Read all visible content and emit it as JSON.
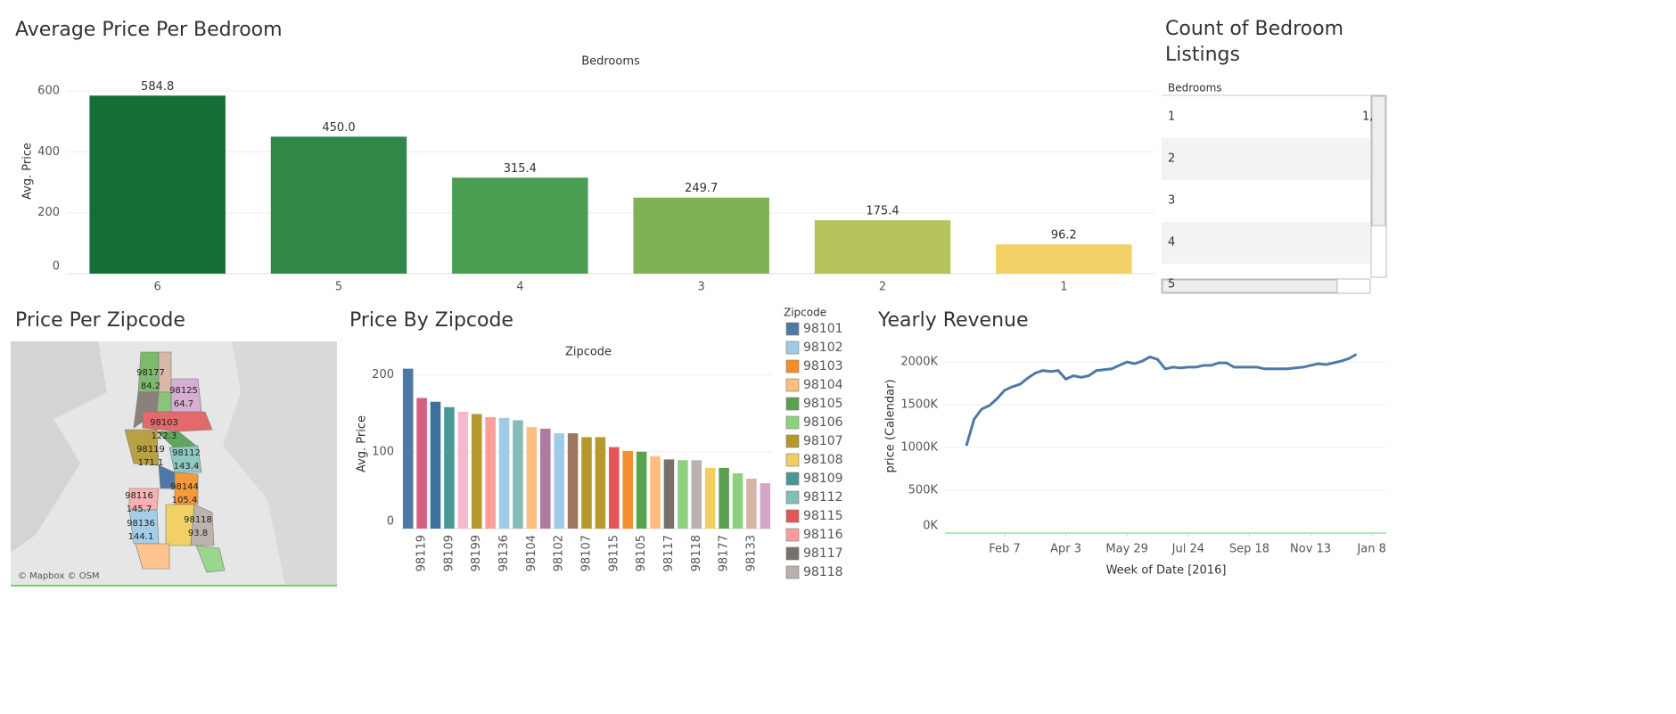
{
  "chart_data": [
    {
      "type": "bar",
      "title": "Average Price Per Bedroom",
      "x_label": "Bedrooms",
      "y_label": "Avg. Price",
      "categories": [
        "6",
        "5",
        "4",
        "3",
        "2",
        "1"
      ],
      "values": [
        584.8,
        450.0,
        315.4,
        249.7,
        175.4,
        96.2
      ],
      "value_labels": [
        "584.8",
        "450.0",
        "315.4",
        "249.7",
        "175.4",
        "96.2"
      ],
      "colors": [
        "#156e35",
        "#2f8748",
        "#4a9e51",
        "#7db255",
        "#b6c35c",
        "#f1d166"
      ],
      "ylim": [
        0,
        650
      ],
      "yticks": [
        0,
        200,
        400,
        600
      ],
      "grid": true
    },
    {
      "type": "bar",
      "title": "Price By Zipcode",
      "x_label": "Zipcode",
      "y_label": "Avg. Price",
      "categories": [
        null,
        "98119",
        null,
        "98109",
        null,
        "98199",
        null,
        "98136",
        null,
        "98104",
        null,
        "98102",
        null,
        "98107",
        null,
        "98115",
        null,
        "98105",
        null,
        "98117",
        null,
        "98118",
        null,
        "98177",
        null,
        "98133",
        null
      ],
      "values": [
        208,
        170,
        165,
        158,
        152,
        149,
        145,
        144,
        141,
        132,
        130,
        124,
        124,
        119,
        119,
        106,
        101,
        100,
        94,
        90,
        89,
        89,
        79,
        79,
        72,
        65,
        59
      ],
      "colors": [
        "#4e79a7",
        "#d75f80",
        "#3f6f9f",
        "#499894",
        "#f6b8cf",
        "#b6992d",
        "#ff9d9a",
        "#a0cbe8",
        "#86bcb6",
        "#ffbe7d",
        "#b07aa1",
        "#a0cbe8",
        "#9d7660",
        "#b6992d",
        "#b6992d",
        "#e15759",
        "#f28e2b",
        "#59a14f",
        "#ffbe7d",
        "#79706e",
        "#8cd17d",
        "#bab0ac",
        "#f1ce63",
        "#59a14f",
        "#8cd17d",
        "#d7b5a6",
        "#d4a6c8"
      ],
      "x_label_rotation": -90,
      "ylim": [
        0,
        218
      ],
      "yticks": [
        0,
        100,
        200
      ],
      "grid": true,
      "legend": {
        "title": "Zipcode",
        "items": [
          {
            "name": "98101",
            "color": "#4e79a7"
          },
          {
            "name": "98102",
            "color": "#a0cbe8"
          },
          {
            "name": "98103",
            "color": "#f28e2b"
          },
          {
            "name": "98104",
            "color": "#ffbe7d"
          },
          {
            "name": "98105",
            "color": "#59a14f"
          },
          {
            "name": "98106",
            "color": "#8cd17d"
          },
          {
            "name": "98107",
            "color": "#b6992d"
          },
          {
            "name": "98108",
            "color": "#f1ce63"
          },
          {
            "name": "98109",
            "color": "#499894"
          },
          {
            "name": "98112",
            "color": "#86bcb6"
          },
          {
            "name": "98115",
            "color": "#e15759"
          },
          {
            "name": "98116",
            "color": "#ff9d9a"
          },
          {
            "name": "98117",
            "color": "#79706e"
          },
          {
            "name": "98118",
            "color": "#bab0ac"
          }
        ]
      }
    },
    {
      "type": "line",
      "title": "Yearly Revenue",
      "x_label": "Week of Date [2016]",
      "y_label": "price (Calendar)",
      "color": "#4e79a7",
      "x": [
        0,
        1,
        2,
        3,
        4,
        5,
        6,
        7,
        8,
        9,
        10,
        11,
        12,
        13,
        14,
        15,
        16,
        17,
        18,
        19,
        20,
        21,
        22,
        23,
        24,
        25,
        26,
        27,
        28,
        29,
        30,
        31,
        32,
        33,
        34,
        35,
        36,
        37,
        38,
        39,
        40,
        41,
        42,
        43,
        44,
        45,
        46,
        47,
        48,
        49,
        50,
        51
      ],
      "values": [
        1020000,
        1330000,
        1450000,
        1490000,
        1570000,
        1670000,
        1710000,
        1740000,
        1810000,
        1870000,
        1900000,
        1890000,
        1900000,
        1800000,
        1840000,
        1820000,
        1840000,
        1900000,
        1910000,
        1920000,
        1960000,
        2000000,
        1980000,
        2010000,
        2060000,
        2030000,
        1920000,
        1940000,
        1930000,
        1940000,
        1940000,
        1960000,
        1960000,
        1990000,
        1990000,
        1940000,
        1940000,
        1940000,
        1940000,
        1920000,
        1920000,
        1920000,
        1920000,
        1930000,
        1940000,
        1960000,
        1980000,
        1970000,
        1990000,
        2010000,
        2040000,
        2090000
      ],
      "xlim": [
        -2.8,
        54.9
      ],
      "xticks": [
        {
          "value": 5,
          "label": "Feb 7"
        },
        {
          "value": 13,
          "label": "Apr 3"
        },
        {
          "value": 21,
          "label": "May 29"
        },
        {
          "value": 29,
          "label": "Jul 24"
        },
        {
          "value": 37,
          "label": "Sep 18"
        },
        {
          "value": 45,
          "label": "Nov 13"
        },
        {
          "value": 53,
          "label": "Jan 8"
        }
      ],
      "ylim": [
        0,
        2220000
      ],
      "yticks": [
        {
          "value": 0,
          "label": "0K"
        },
        {
          "value": 500000,
          "label": "500K"
        },
        {
          "value": 1000000,
          "label": "1000K"
        },
        {
          "value": 1500000,
          "label": "1500K"
        },
        {
          "value": 2000000,
          "label": "2000K"
        }
      ],
      "grid": true
    }
  ],
  "table": {
    "title": "Count of Bedroom Listings",
    "header": "Bedrooms",
    "rows": [
      [
        "1",
        "1,"
      ],
      [
        "2"
      ],
      [
        "3"
      ],
      [
        "4"
      ],
      [
        "5"
      ]
    ]
  },
  "map": {
    "title": "Price Per Zipcode",
    "attribution": "© Mapbox © OSM",
    "regions": [
      {
        "zipcode": "98177",
        "value": 84.2
      },
      {
        "zipcode": "98125",
        "value": 64.7
      },
      {
        "zipcode": "98103",
        "value": 122.3
      },
      {
        "zipcode": "98119",
        "value": 171.1
      },
      {
        "zipcode": "98112",
        "value": 143.4
      },
      {
        "zipcode": "98144",
        "value": 105.4
      },
      {
        "zipcode": "98116",
        "value": 145.7
      },
      {
        "zipcode": "98136",
        "value": 144.1
      },
      {
        "zipcode": "98118",
        "value": 93.8
      }
    ]
  }
}
